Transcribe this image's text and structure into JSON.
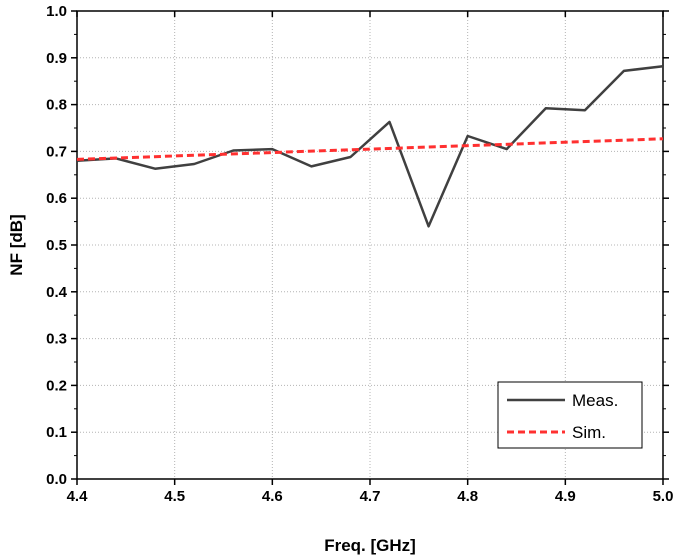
{
  "chart_data": {
    "type": "line",
    "title": "",
    "xlabel": "Freq. [GHz]",
    "ylabel": "NF [dB]",
    "xlim": [
      4.4,
      5.0
    ],
    "ylim": [
      0.0,
      1.0
    ],
    "xticks": [
      "4.4",
      "4.5",
      "4.6",
      "4.7",
      "4.8",
      "4.9",
      "5.0"
    ],
    "yticks": [
      "0.0",
      "0.1",
      "0.2",
      "0.3",
      "0.4",
      "0.5",
      "0.6",
      "0.7",
      "0.8",
      "0.9",
      "1.0"
    ],
    "grid": true,
    "legend_position": "bottom-right",
    "series": [
      {
        "name": "Meas.",
        "color": "#404040",
        "style": "solid",
        "x": [
          4.4,
          4.44,
          4.48,
          4.52,
          4.56,
          4.6,
          4.64,
          4.68,
          4.72,
          4.76,
          4.8,
          4.84,
          4.88,
          4.92,
          4.96,
          5.0
        ],
        "y": [
          0.68,
          0.685,
          0.663,
          0.673,
          0.702,
          0.705,
          0.668,
          0.688,
          0.763,
          0.54,
          0.733,
          0.705,
          0.792,
          0.788,
          0.872,
          0.882
        ]
      },
      {
        "name": "Sim.",
        "color": "#ff3030",
        "style": "dashed",
        "x": [
          4.4,
          5.0
        ],
        "y": [
          0.683,
          0.727
        ]
      }
    ]
  }
}
